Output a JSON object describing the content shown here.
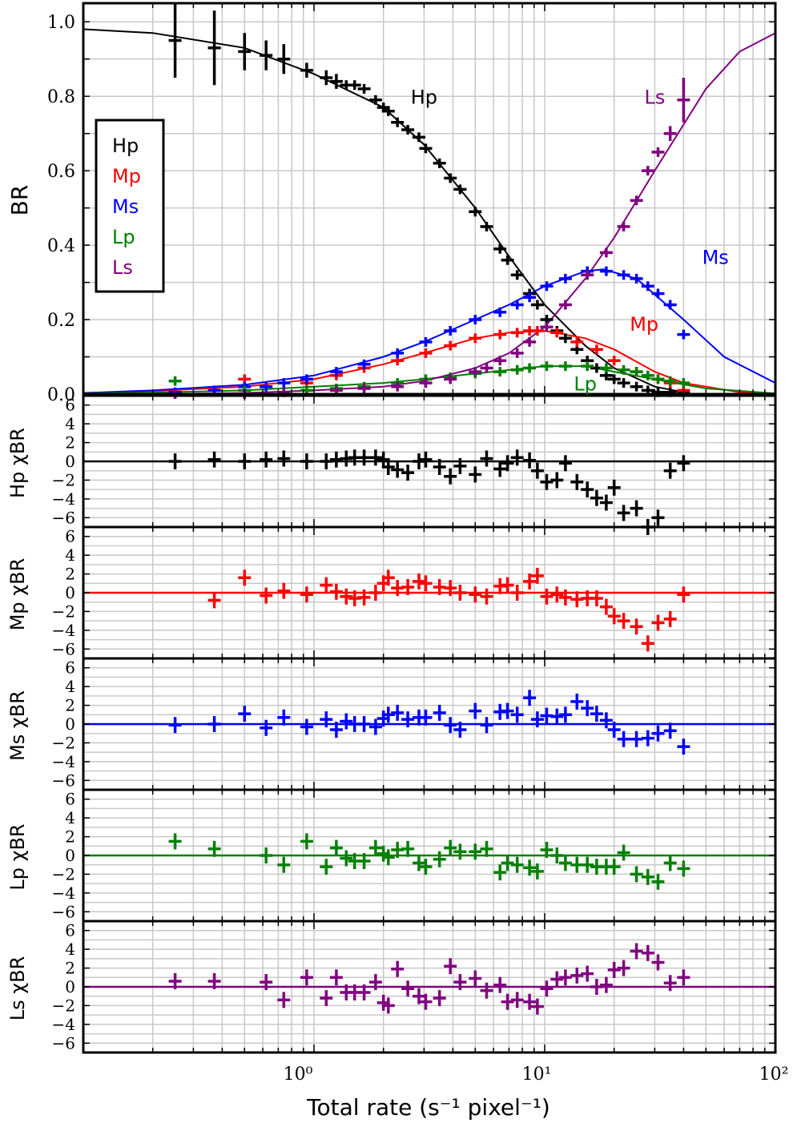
{
  "chart_data": {
    "type": "scatter",
    "xscale": "log",
    "xlim": [
      0.1,
      100
    ],
    "xlabel": "Total rate (s⁻¹ pixel⁻¹)",
    "xticks": [
      "10⁰",
      "10¹",
      "10²"
    ],
    "colors": {
      "Hp": "#000000",
      "Mp": "#ff0000",
      "Ms": "#0000ff",
      "Lp": "#008000",
      "Ls": "#800080"
    },
    "main_panel": {
      "ylabel": "BR",
      "ylim": [
        0,
        1.05
      ],
      "yticks": [
        "0.0",
        "0.2",
        "0.4",
        "0.6",
        "0.8",
        "1.0"
      ],
      "legend": {
        "placement": "upper-left",
        "entries": [
          "Hp",
          "Mp",
          "Ms",
          "Lp",
          "Ls"
        ]
      },
      "annotations": [
        {
          "text": "Hp",
          "series": "Hp",
          "x": 3.0,
          "y": 0.78
        },
        {
          "text": "Ls",
          "series": "Ls",
          "x": 30.0,
          "y": 0.78
        },
        {
          "text": "Ms",
          "series": "Ms",
          "x": 55.0,
          "y": 0.35
        },
        {
          "text": "Mp",
          "series": "Mp",
          "x": 27.0,
          "y": 0.17
        },
        {
          "text": "Lp",
          "series": "Lp",
          "x": 15.0,
          "y": 0.01
        }
      ],
      "series": [
        {
          "name": "Hp",
          "x": [
            0.25,
            0.37,
            0.5,
            0.62,
            0.74,
            0.93,
            1.13,
            1.25,
            1.38,
            1.5,
            1.65,
            1.85,
            2.0,
            2.1,
            2.3,
            2.55,
            2.85,
            3.05,
            3.5,
            3.9,
            4.3,
            5.0,
            5.6,
            6.4,
            6.9,
            7.6,
            8.6,
            9.3,
            10.2,
            11.3,
            12.3,
            13.8,
            15.3,
            16.8,
            18.5,
            20.0,
            22.0,
            25.0,
            28.0,
            31.0,
            35.0,
            40.0
          ],
          "y": [
            0.95,
            0.93,
            0.92,
            0.91,
            0.9,
            0.87,
            0.85,
            0.84,
            0.83,
            0.83,
            0.82,
            0.79,
            0.77,
            0.76,
            0.73,
            0.71,
            0.69,
            0.66,
            0.62,
            0.58,
            0.55,
            0.49,
            0.45,
            0.39,
            0.36,
            0.32,
            0.27,
            0.24,
            0.2,
            0.17,
            0.15,
            0.12,
            0.09,
            0.07,
            0.05,
            0.04,
            0.03,
            0.02,
            0.01,
            0.005,
            0.005,
            0.005
          ],
          "yerr": [
            0.1,
            0.1,
            0.05,
            0.04,
            0.04,
            0.02,
            0.02,
            0.02,
            0.01,
            0.01,
            0.01,
            0.01,
            0.01,
            0.01,
            0.01,
            0.01,
            0.01,
            0.01,
            0.01,
            0.01,
            0.01,
            0.01,
            0.01,
            0.01,
            0.01,
            0.01,
            0.01,
            0.01,
            0.01,
            0.01,
            0.01,
            0.01,
            0.01,
            0.01,
            0.01,
            0.01,
            0.01,
            0.01,
            0.01,
            0.01,
            0.01,
            0.01
          ],
          "model_x": [
            0.1,
            0.2,
            0.5,
            1.0,
            2.0,
            3.0,
            5.0,
            7.0,
            10.0,
            15.0,
            20.0,
            30.0,
            40.0
          ],
          "model_y": [
            0.98,
            0.97,
            0.93,
            0.86,
            0.77,
            0.67,
            0.5,
            0.37,
            0.24,
            0.13,
            0.07,
            0.02,
            0.005
          ]
        },
        {
          "name": "Mp",
          "x": [
            0.25,
            0.5,
            0.62,
            0.93,
            1.25,
            1.65,
            2.3,
            3.05,
            3.9,
            5.0,
            6.4,
            7.6,
            8.6,
            9.3,
            11.3,
            13.8,
            16.8,
            20.0,
            25.0,
            31.0,
            35.0,
            40.0
          ],
          "y": [
            0.0,
            0.04,
            0.02,
            0.03,
            0.05,
            0.07,
            0.09,
            0.11,
            0.13,
            0.15,
            0.16,
            0.165,
            0.17,
            0.17,
            0.165,
            0.14,
            0.12,
            0.09,
            0.06,
            0.04,
            0.03,
            0.01
          ],
          "model_x": [
            0.1,
            0.2,
            0.5,
            1.0,
            2.0,
            3.0,
            5.0,
            7.0,
            10.0,
            15.0,
            20.0,
            30.0,
            40.0,
            70.0,
            100.0
          ],
          "model_y": [
            0.003,
            0.008,
            0.02,
            0.04,
            0.08,
            0.11,
            0.15,
            0.165,
            0.17,
            0.15,
            0.12,
            0.06,
            0.03,
            0.005,
            0.0
          ]
        },
        {
          "name": "Ms",
          "x": [
            0.25,
            0.37,
            0.5,
            0.62,
            0.74,
            0.93,
            1.25,
            1.65,
            2.3,
            3.05,
            3.9,
            5.0,
            6.4,
            7.6,
            8.6,
            10.2,
            12.3,
            15.3,
            18.5,
            22.0,
            25.0,
            28.0,
            31.0,
            35.0,
            40.0
          ],
          "y": [
            0.005,
            0.01,
            0.02,
            0.02,
            0.03,
            0.04,
            0.06,
            0.08,
            0.11,
            0.14,
            0.17,
            0.2,
            0.22,
            0.24,
            0.26,
            0.29,
            0.31,
            0.33,
            0.33,
            0.32,
            0.31,
            0.29,
            0.27,
            0.24,
            0.16
          ],
          "model_x": [
            0.1,
            0.2,
            0.5,
            1.0,
            2.0,
            3.0,
            5.0,
            7.0,
            10.0,
            15.0,
            18.0,
            25.0,
            40.0,
            60.0,
            100.0
          ],
          "model_y": [
            0.003,
            0.01,
            0.025,
            0.05,
            0.1,
            0.14,
            0.2,
            0.24,
            0.29,
            0.33,
            0.335,
            0.31,
            0.2,
            0.1,
            0.03
          ]
        },
        {
          "name": "Lp",
          "x": [
            0.25,
            0.5,
            0.93,
            1.25,
            1.65,
            2.3,
            3.05,
            3.9,
            5.0,
            6.4,
            7.6,
            8.6,
            10.2,
            12.3,
            15.3,
            18.5,
            22.0,
            25.0,
            28.0,
            31.0,
            35.0,
            40.0
          ],
          "y": [
            0.035,
            0.01,
            0.01,
            0.015,
            0.02,
            0.03,
            0.04,
            0.045,
            0.055,
            0.06,
            0.065,
            0.07,
            0.075,
            0.075,
            0.075,
            0.07,
            0.065,
            0.06,
            0.05,
            0.04,
            0.035,
            0.03
          ],
          "model_x": [
            0.1,
            0.2,
            0.5,
            1.0,
            2.0,
            3.0,
            5.0,
            10.0,
            15.0,
            20.0,
            30.0,
            50.0,
            100.0
          ],
          "model_y": [
            0.002,
            0.004,
            0.01,
            0.02,
            0.03,
            0.04,
            0.055,
            0.075,
            0.075,
            0.06,
            0.04,
            0.015,
            0.002
          ]
        },
        {
          "name": "Ls",
          "x": [
            0.25,
            0.5,
            0.74,
            1.25,
            1.65,
            2.3,
            3.05,
            3.9,
            5.0,
            5.6,
            6.4,
            7.6,
            8.6,
            10.2,
            12.3,
            15.3,
            18.5,
            22.0,
            25.0,
            28.0,
            31.0,
            35.0,
            40.0
          ],
          "y": [
            0.0,
            0.0,
            0.005,
            0.01,
            0.015,
            0.02,
            0.03,
            0.04,
            0.06,
            0.07,
            0.09,
            0.11,
            0.14,
            0.18,
            0.24,
            0.32,
            0.38,
            0.45,
            0.52,
            0.6,
            0.65,
            0.7,
            0.79
          ],
          "yerr": [
            0.01,
            0.01,
            0.01,
            0.01,
            0.01,
            0.01,
            0.01,
            0.01,
            0.01,
            0.01,
            0.01,
            0.01,
            0.01,
            0.01,
            0.01,
            0.01,
            0.01,
            0.01,
            0.01,
            0.01,
            0.01,
            0.02,
            0.06
          ],
          "model_x": [
            0.1,
            0.2,
            0.5,
            1.0,
            2.0,
            3.0,
            5.0,
            7.0,
            10.0,
            15.0,
            20.0,
            30.0,
            50.0,
            70.0,
            100.0
          ],
          "model_y": [
            0.0,
            0.0,
            0.003,
            0.01,
            0.02,
            0.035,
            0.07,
            0.11,
            0.18,
            0.31,
            0.42,
            0.6,
            0.82,
            0.92,
            0.97
          ]
        }
      ]
    },
    "residual_panels": [
      {
        "series": "Hp",
        "ylabel": "Hp χBR",
        "ylim": [
          -7,
          7
        ],
        "yticks": [
          "6",
          "4",
          "2",
          "0",
          "−2",
          "−4",
          "−6"
        ],
        "x": [
          0.25,
          0.37,
          0.5,
          0.62,
          0.74,
          0.93,
          1.13,
          1.25,
          1.38,
          1.5,
          1.65,
          1.85,
          2.0,
          2.1,
          2.3,
          2.55,
          2.85,
          3.05,
          3.5,
          3.9,
          4.3,
          5.0,
          5.6,
          6.4,
          6.9,
          7.6,
          8.6,
          9.3,
          10.2,
          11.3,
          12.3,
          13.8,
          15.3,
          16.8,
          18.5,
          20.0,
          22.0,
          25.0,
          28.0,
          31.0,
          35.0,
          40.0
        ],
        "y": [
          0.0,
          0.2,
          0.0,
          0.2,
          0.3,
          0.0,
          0.0,
          0.2,
          0.3,
          0.4,
          0.4,
          0.4,
          0.2,
          -0.6,
          -0.9,
          -1.2,
          0.0,
          0.2,
          -0.6,
          -1.6,
          -0.5,
          -1.4,
          0.3,
          -0.8,
          -0.2,
          0.4,
          0.1,
          -1.0,
          -2.2,
          -2.0,
          -0.2,
          -2.2,
          -3.0,
          -3.9,
          -4.4,
          -2.8,
          -5.5,
          -5.0,
          -7.0,
          -6.0,
          -1.0,
          -0.2
        ]
      },
      {
        "series": "Mp",
        "ylabel": "Mp χBR",
        "ylim": [
          -7,
          7
        ],
        "yticks": [
          "6",
          "4",
          "2",
          "0",
          "−2",
          "−4",
          "−6"
        ],
        "x": [
          0.37,
          0.5,
          0.62,
          0.74,
          0.93,
          1.13,
          1.25,
          1.38,
          1.5,
          1.65,
          1.85,
          2.0,
          2.1,
          2.3,
          2.55,
          2.85,
          3.05,
          3.5,
          3.9,
          4.3,
          5.0,
          5.6,
          6.4,
          6.9,
          7.6,
          8.6,
          9.3,
          10.2,
          11.3,
          12.3,
          13.8,
          15.3,
          16.8,
          18.5,
          20.0,
          22.0,
          25.0,
          28.0,
          31.0,
          35.0,
          40.0
        ],
        "y": [
          -0.8,
          1.6,
          -0.3,
          0.2,
          -0.2,
          0.8,
          0.1,
          -0.4,
          -0.6,
          -0.5,
          0.0,
          1.0,
          1.6,
          0.5,
          0.6,
          1.2,
          1.0,
          0.6,
          0.5,
          0.0,
          -0.2,
          -0.4,
          0.7,
          0.8,
          0.0,
          1.2,
          1.8,
          -0.4,
          -0.2,
          -0.5,
          -0.7,
          -0.6,
          -0.6,
          -1.5,
          -2.5,
          -3.0,
          -3.6,
          -5.4,
          -3.2,
          -2.8,
          -0.2
        ]
      },
      {
        "series": "Ms",
        "ylabel": "Ms χBR",
        "ylim": [
          -7,
          7
        ],
        "yticks": [
          "6",
          "4",
          "2",
          "0",
          "−2",
          "−4",
          "−6"
        ],
        "x": [
          0.25,
          0.37,
          0.5,
          0.62,
          0.74,
          0.93,
          1.13,
          1.25,
          1.38,
          1.5,
          1.65,
          1.85,
          2.0,
          2.1,
          2.3,
          2.55,
          2.85,
          3.05,
          3.5,
          3.9,
          4.3,
          5.0,
          5.6,
          6.4,
          6.9,
          7.6,
          8.6,
          9.3,
          10.2,
          11.3,
          12.3,
          13.8,
          15.3,
          16.8,
          18.5,
          20.0,
          22.0,
          25.0,
          28.0,
          31.0,
          35.0,
          40.0
        ],
        "y": [
          -0.1,
          0.0,
          1.1,
          -0.4,
          0.7,
          -0.3,
          0.5,
          -0.6,
          0.3,
          0.0,
          0.0,
          -0.3,
          0.6,
          1.0,
          1.2,
          0.5,
          0.7,
          0.7,
          1.2,
          -0.1,
          -0.6,
          1.4,
          -0.1,
          1.3,
          1.4,
          1.0,
          2.8,
          0.5,
          0.9,
          0.8,
          1.0,
          2.4,
          1.7,
          1.1,
          0.4,
          -0.6,
          -1.6,
          -1.6,
          -1.5,
          -1.0,
          -0.7,
          -2.4
        ]
      },
      {
        "series": "Lp",
        "ylabel": "Lp χBR",
        "ylim": [
          -7,
          7
        ],
        "yticks": [
          "6",
          "4",
          "2",
          "0",
          "−2",
          "−4",
          "−6"
        ],
        "x": [
          0.25,
          0.37,
          0.62,
          0.74,
          0.93,
          1.13,
          1.25,
          1.38,
          1.5,
          1.65,
          1.85,
          2.0,
          2.1,
          2.3,
          2.55,
          2.85,
          3.05,
          3.5,
          3.9,
          4.3,
          5.0,
          5.6,
          6.4,
          6.9,
          7.6,
          8.6,
          9.3,
          10.2,
          11.3,
          12.3,
          13.8,
          15.3,
          16.8,
          18.5,
          20.0,
          22.0,
          25.0,
          28.0,
          31.0,
          35.0,
          40.0
        ],
        "y": [
          1.5,
          0.7,
          0.0,
          -1.0,
          1.5,
          -1.2,
          0.8,
          -0.3,
          -0.6,
          -0.6,
          0.8,
          0.2,
          -0.2,
          0.6,
          0.7,
          -0.8,
          -1.2,
          -0.4,
          0.8,
          0.4,
          0.4,
          0.7,
          -1.8,
          -0.8,
          -1.0,
          -1.3,
          -1.7,
          0.6,
          0.0,
          -0.8,
          -1.0,
          -1.0,
          -1.2,
          -1.2,
          -1.2,
          0.3,
          -2.0,
          -2.3,
          -2.8,
          -0.8,
          -1.4
        ]
      },
      {
        "series": "Ls",
        "ylabel": "Ls χBR",
        "ylim": [
          -7,
          7
        ],
        "yticks": [
          "6",
          "4",
          "2",
          "0",
          "−2",
          "−4",
          "−6"
        ],
        "x": [
          0.25,
          0.37,
          0.62,
          0.74,
          0.93,
          1.13,
          1.25,
          1.38,
          1.5,
          1.65,
          1.85,
          2.0,
          2.1,
          2.3,
          2.55,
          2.85,
          3.05,
          3.5,
          3.9,
          4.3,
          5.0,
          5.6,
          6.4,
          6.9,
          7.6,
          8.6,
          9.3,
          10.2,
          11.3,
          12.3,
          13.8,
          15.3,
          16.8,
          18.5,
          20.0,
          22.0,
          25.0,
          28.0,
          31.0,
          35.0,
          40.0
        ],
        "y": [
          0.6,
          0.6,
          0.5,
          -1.4,
          1.0,
          -1.2,
          1.0,
          -0.6,
          -0.6,
          -0.6,
          0.5,
          -1.7,
          -2.0,
          1.9,
          -0.2,
          -1.0,
          -1.6,
          -1.2,
          2.2,
          0.5,
          0.9,
          -0.4,
          0.2,
          -1.6,
          -1.4,
          -1.6,
          -2.1,
          -0.2,
          0.8,
          1.0,
          1.2,
          1.4,
          0.0,
          0.2,
          1.8,
          2.0,
          3.8,
          3.6,
          2.6,
          0.4,
          1.0
        ]
      }
    ]
  }
}
